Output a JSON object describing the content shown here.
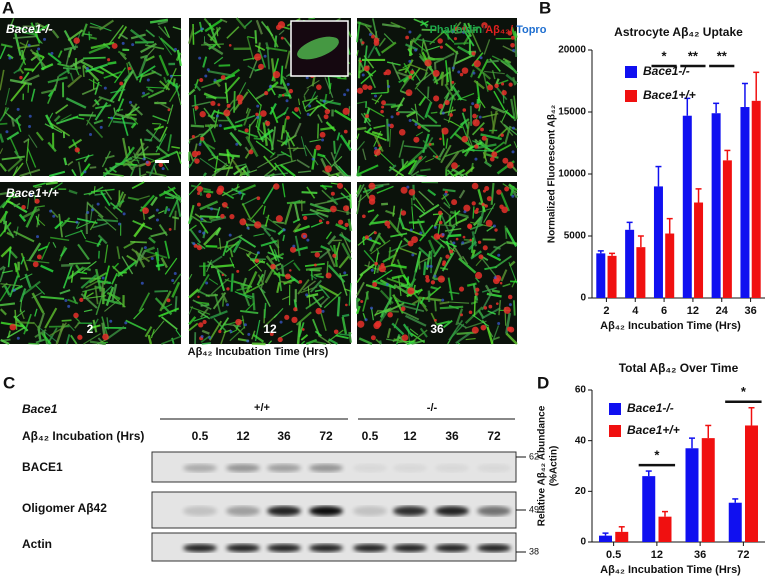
{
  "panel_a": {
    "label": "A",
    "genotypes": [
      "Bace1-/-",
      "Bace1+/+"
    ],
    "times": [
      "2",
      "12",
      "36"
    ],
    "stain_legend": [
      "Phalloidin",
      "/",
      "Aβ₄₂/",
      " Topro"
    ],
    "stain_colors": [
      "#1fa84a",
      "#222222",
      "#e0201e",
      "#1f6fd0"
    ],
    "xlabel": "Aβ₄₂ Incubation Time (Hrs)"
  },
  "chart_data": [
    {
      "type": "bar",
      "panel": "B",
      "title": "Astrocyte Aβ₄₂ Uptake",
      "categories": [
        "2",
        "4",
        "6",
        "12",
        "24",
        "36"
      ],
      "series": [
        {
          "name": "Bace1-/-",
          "color": "#1010f0",
          "values": [
            3600,
            5500,
            9000,
            14700,
            14900,
            15400
          ],
          "errors": [
            200,
            600,
            1600,
            1400,
            800,
            1900
          ]
        },
        {
          "name": "Bace1+/+",
          "color": "#f01010",
          "values": [
            3400,
            4100,
            5200,
            7700,
            11100,
            15900
          ],
          "errors": [
            200,
            900,
            1200,
            1100,
            800,
            2300
          ]
        }
      ],
      "ylim": [
        0,
        20000
      ],
      "yticks": [
        0,
        5000,
        10000,
        15000,
        20000
      ],
      "xlabel": "Aβ₄₂ Incubation Time (Hrs)",
      "ylabel": "Normalized Fluorescent Aβ₄₂",
      "annotations": [
        {
          "text": "*",
          "x": "6"
        },
        {
          "text": "**",
          "x": "12"
        },
        {
          "text": "**",
          "x": "24"
        }
      ]
    },
    {
      "type": "bar",
      "panel": "D",
      "title": "Total Aβ₄₂ Over Time",
      "categories": [
        "0.5",
        "12",
        "36",
        "72"
      ],
      "series": [
        {
          "name": "Bace1-/-",
          "color": "#1010f0",
          "values": [
            2.5,
            26,
            37,
            15.5
          ],
          "errors": [
            1,
            2,
            4,
            1.5
          ]
        },
        {
          "name": "Bace1+/+",
          "color": "#f01010",
          "values": [
            4,
            10,
            41,
            46
          ],
          "errors": [
            2,
            2,
            5,
            7
          ]
        }
      ],
      "ylim": [
        0,
        60
      ],
      "yticks": [
        0,
        20,
        40,
        60
      ],
      "xlabel": "Aβ₄₂ Incubation Time (Hrs)",
      "ylabel": [
        "Relative Aβ₄₂ Abundance",
        "(%Actin)"
      ],
      "annotations": [
        {
          "text": "*",
          "x": "12"
        },
        {
          "text": "*",
          "x": "72"
        }
      ]
    }
  ],
  "panel_c": {
    "label": "C",
    "gene": "Bace1",
    "groups": [
      "+/+",
      "-/-"
    ],
    "incubation_label": "Aβ₄₂ Incubation (Hrs)",
    "lanes": [
      "0.5",
      "12",
      "36",
      "72",
      "0.5",
      "12",
      "36",
      "72"
    ],
    "rows": [
      "BACE1",
      "Oligomer Aβ42",
      "Actin"
    ],
    "markers": [
      "62",
      "49",
      "38"
    ]
  }
}
